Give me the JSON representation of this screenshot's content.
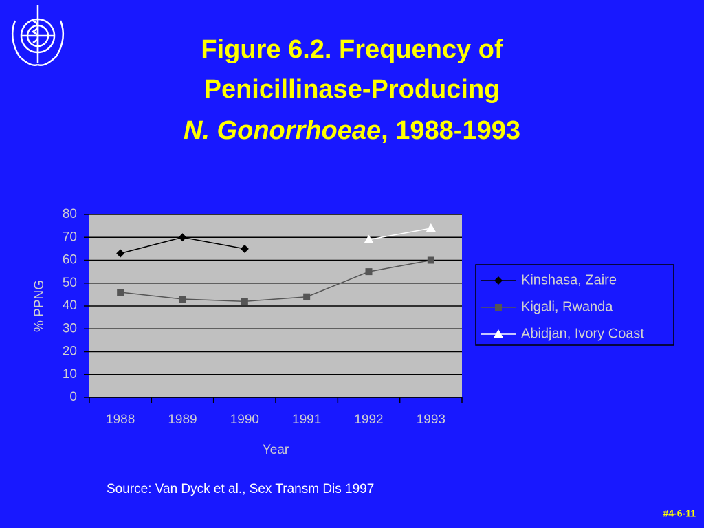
{
  "chart_data": {
    "type": "line",
    "title": {
      "lines": [
        "Figure 6.2. Frequency of",
        "Penicillinase-Producing"
      ],
      "species": "N. Gonorrhoeae",
      "years": ", 1988-1993"
    },
    "categories": [
      "1988",
      "1989",
      "1990",
      "1991",
      "1992",
      "1993"
    ],
    "series": [
      {
        "name": "Kinshasa, Zaire",
        "color": "#000000",
        "marker": "diamond",
        "values": [
          63,
          70,
          65,
          null,
          null,
          null
        ]
      },
      {
        "name": "Kigali, Rwanda",
        "color": "#555555",
        "marker": "square",
        "values": [
          46,
          43,
          42,
          44,
          55,
          60
        ]
      },
      {
        "name": "Abidjan, Ivory Coast",
        "color": "#ffffff",
        "marker": "triangle",
        "values": [
          null,
          null,
          null,
          null,
          69,
          74
        ]
      }
    ],
    "ylim": [
      0,
      80
    ],
    "yticks": [
      0,
      10,
      20,
      30,
      40,
      50,
      60,
      70,
      80
    ],
    "grid": true,
    "ylabel": "% PPNG",
    "xlabel": "Year",
    "legend": "right",
    "source": "Source: Van Dyck et al., Sex Transm Dis 1997"
  },
  "slide_number": "#4-6-11"
}
